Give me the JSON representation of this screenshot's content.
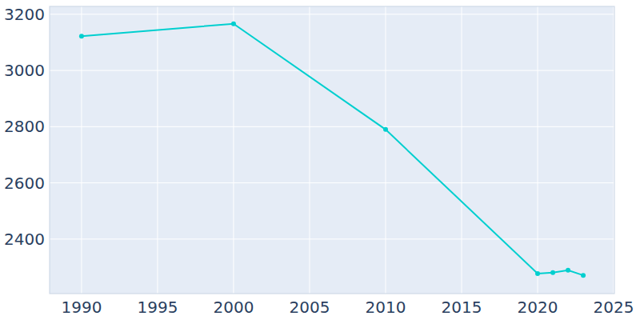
{
  "chart_data": {
    "type": "line",
    "x": [
      1990,
      2000,
      2010,
      2020,
      2021,
      2022,
      2023
    ],
    "values": [
      3122,
      3166,
      2790,
      2277,
      2281,
      2289,
      2271
    ],
    "color": "#00cfcf",
    "marker": "circle",
    "xlim": [
      1987.9,
      2025.05
    ],
    "ylim": [
      2206,
      3228
    ],
    "xticks": [
      1990,
      1995,
      2000,
      2005,
      2010,
      2015,
      2020,
      2025
    ],
    "yticks": [
      2400,
      2600,
      2800,
      3000,
      3200
    ],
    "grid": true
  }
}
